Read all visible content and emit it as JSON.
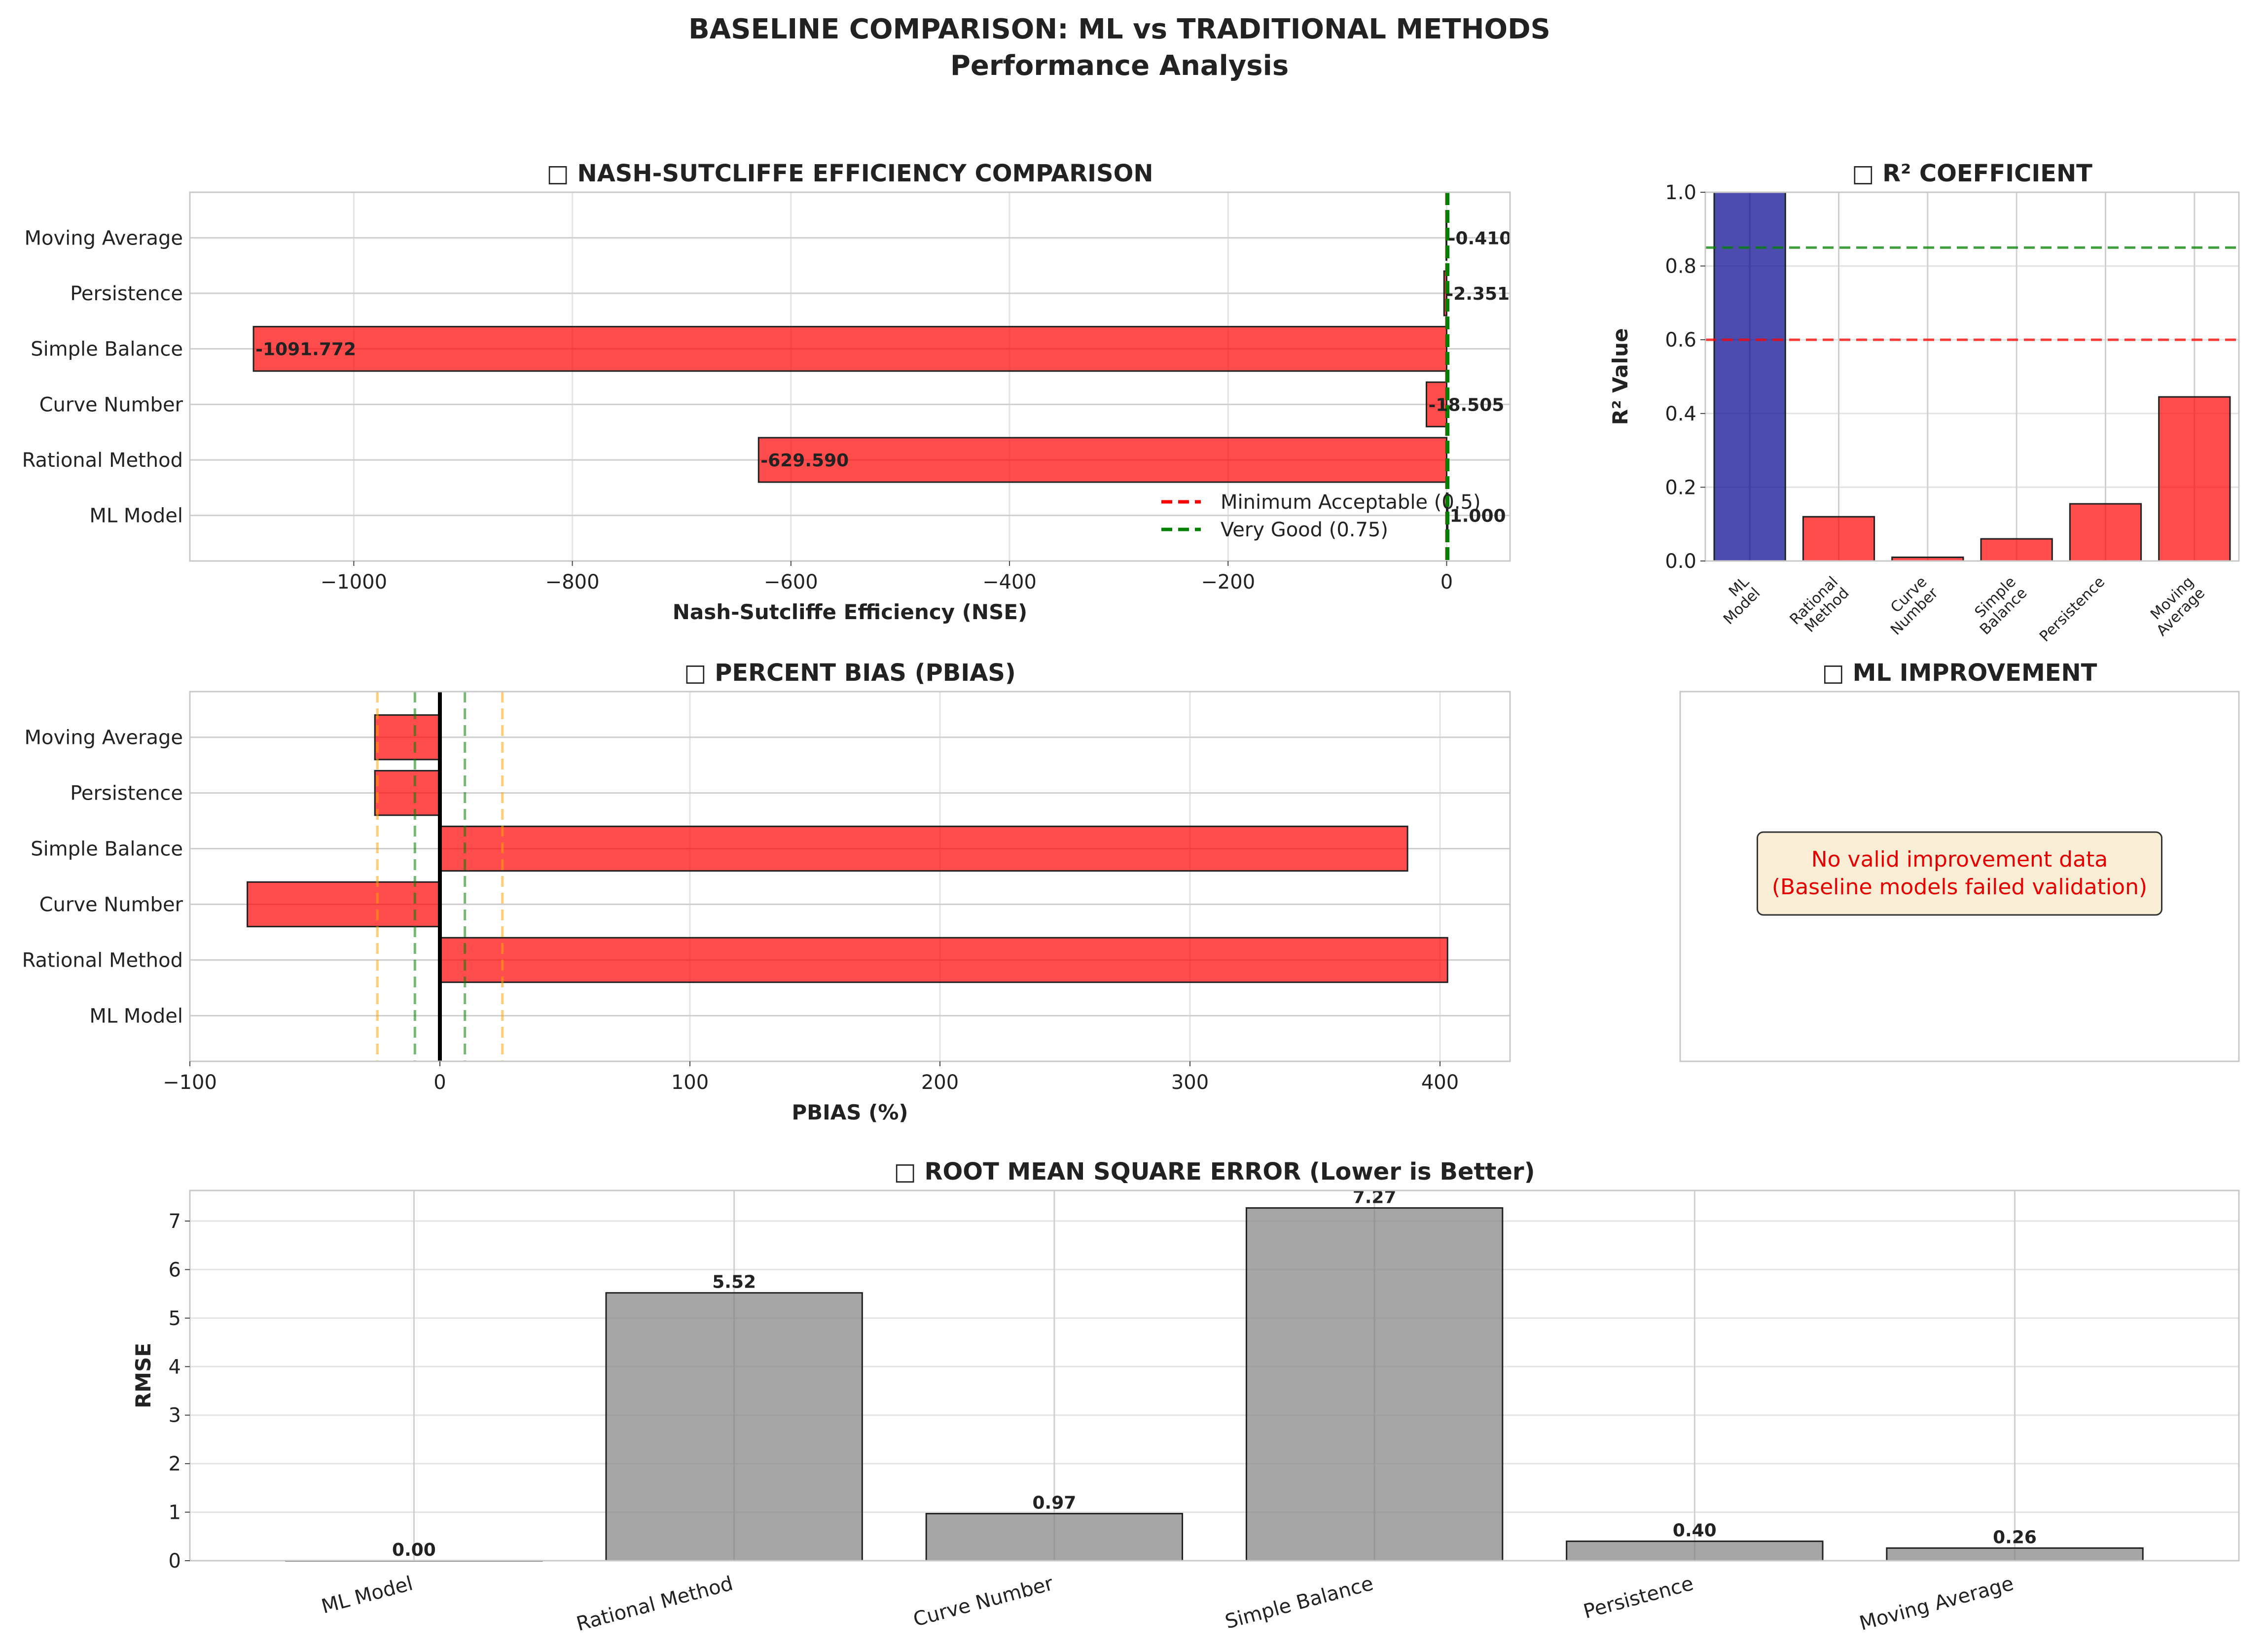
{
  "figure": {
    "title_line1": "BASELINE COMPARISON: ML vs TRADITIONAL METHODS",
    "title_line2": "Performance Analysis"
  },
  "colors": {
    "ml": "#00008b",
    "baseline": "#ff0000",
    "rmse": "#808080",
    "threshold_red": "#ff0000",
    "threshold_green": "#008000",
    "threshold_orange": "#ffa500",
    "note_bg": "#f5deb3",
    "note_text": "#e60000"
  },
  "chart_data": [
    {
      "id": "nse",
      "type": "bar",
      "orientation": "horizontal",
      "title": "□ NASH-SUTCLIFFE EFFICIENCY COMPARISON",
      "xlabel": "Nash-Sutcliffe Efficiency (NSE)",
      "categories": [
        "ML Model",
        "Rational Method",
        "Curve Number",
        "Simple Balance",
        "Persistence",
        "Moving Average"
      ],
      "values": [
        1.0,
        -629.59,
        -18.505,
        -1091.772,
        -2.351,
        -0.41
      ],
      "value_labels": [
        "1.000",
        "-629.590",
        "-18.505",
        "-1091.772",
        "-2.351",
        "-0.410"
      ],
      "xlim": [
        -1150,
        58
      ],
      "xticks": [
        -1000,
        -800,
        -600,
        -400,
        -200,
        0
      ],
      "xtick_labels": [
        "−1000",
        "−800",
        "−600",
        "−400",
        "−200",
        "0"
      ],
      "reference_lines": [
        {
          "value": 0.5,
          "label": "Minimum Acceptable (0.5)",
          "color": "#ff0000"
        },
        {
          "value": 0.75,
          "label": "Very Good (0.75)",
          "color": "#008000"
        }
      ],
      "legend": "lower-right",
      "grid": true
    },
    {
      "id": "r2",
      "type": "bar",
      "title": "□ R² COEFFICIENT",
      "ylabel": "R² Value",
      "categories": [
        [
          "ML",
          "Model"
        ],
        [
          "Rational",
          "Method"
        ],
        [
          "Curve",
          "Number"
        ],
        [
          "Simple",
          "Balance"
        ],
        [
          "Persistence"
        ],
        [
          "Moving",
          "Average"
        ]
      ],
      "values": [
        1.0,
        0.12,
        0.01,
        0.06,
        0.155,
        0.445
      ],
      "ylim": [
        0,
        1.0
      ],
      "yticks": [
        0.0,
        0.2,
        0.4,
        0.6,
        0.8,
        1.0
      ],
      "ytick_labels": [
        "0.0",
        "0.2",
        "0.4",
        "0.6",
        "0.8",
        "1.0"
      ],
      "reference_lines": [
        {
          "value": 0.6,
          "color": "#ff0000"
        },
        {
          "value": 0.85,
          "color": "#008000"
        }
      ],
      "grid": true
    },
    {
      "id": "pbias",
      "type": "bar",
      "orientation": "horizontal",
      "title": "□ PERCENT BIAS (PBIAS)",
      "xlabel": "PBIAS (%)",
      "categories": [
        "ML Model",
        "Rational Method",
        "Curve Number",
        "Simple Balance",
        "Persistence",
        "Moving Average"
      ],
      "values": [
        0.0,
        403.0,
        -77.0,
        387.0,
        -26.0,
        -26.0
      ],
      "xlim": [
        -100,
        428
      ],
      "xticks": [
        -100,
        0,
        100,
        200,
        300,
        400
      ],
      "xtick_labels": [
        "−100",
        "0",
        "100",
        "200",
        "300",
        "400"
      ],
      "reference_lines": [
        {
          "value": -25,
          "color": "#ffa500"
        },
        {
          "value": 25,
          "color": "#ffa500"
        },
        {
          "value": -10,
          "color": "#008000"
        },
        {
          "value": 10,
          "color": "#008000"
        },
        {
          "value": 0,
          "color": "#000000"
        }
      ],
      "grid": true
    },
    {
      "id": "ml_improvement",
      "type": "bar",
      "title": "□ ML IMPROVEMENT",
      "note_line1": "No valid improvement data",
      "note_line2": "(Baseline models failed validation)"
    },
    {
      "id": "rmse",
      "type": "bar",
      "title": "□ ROOT MEAN SQUARE ERROR (Lower is Better)",
      "ylabel": "RMSE",
      "categories": [
        "ML Model",
        "Rational Method",
        "Curve Number",
        "Simple Balance",
        "Persistence",
        "Moving Average"
      ],
      "values": [
        0.0,
        5.52,
        0.97,
        7.27,
        0.4,
        0.26
      ],
      "value_labels": [
        "0.00",
        "5.52",
        "0.97",
        "7.27",
        "0.40",
        "0.26"
      ],
      "ylim": [
        0,
        7.63
      ],
      "yticks": [
        0,
        1,
        2,
        3,
        4,
        5,
        6,
        7
      ],
      "ytick_labels": [
        "0",
        "1",
        "2",
        "3",
        "4",
        "5",
        "6",
        "7"
      ],
      "grid": true
    }
  ]
}
